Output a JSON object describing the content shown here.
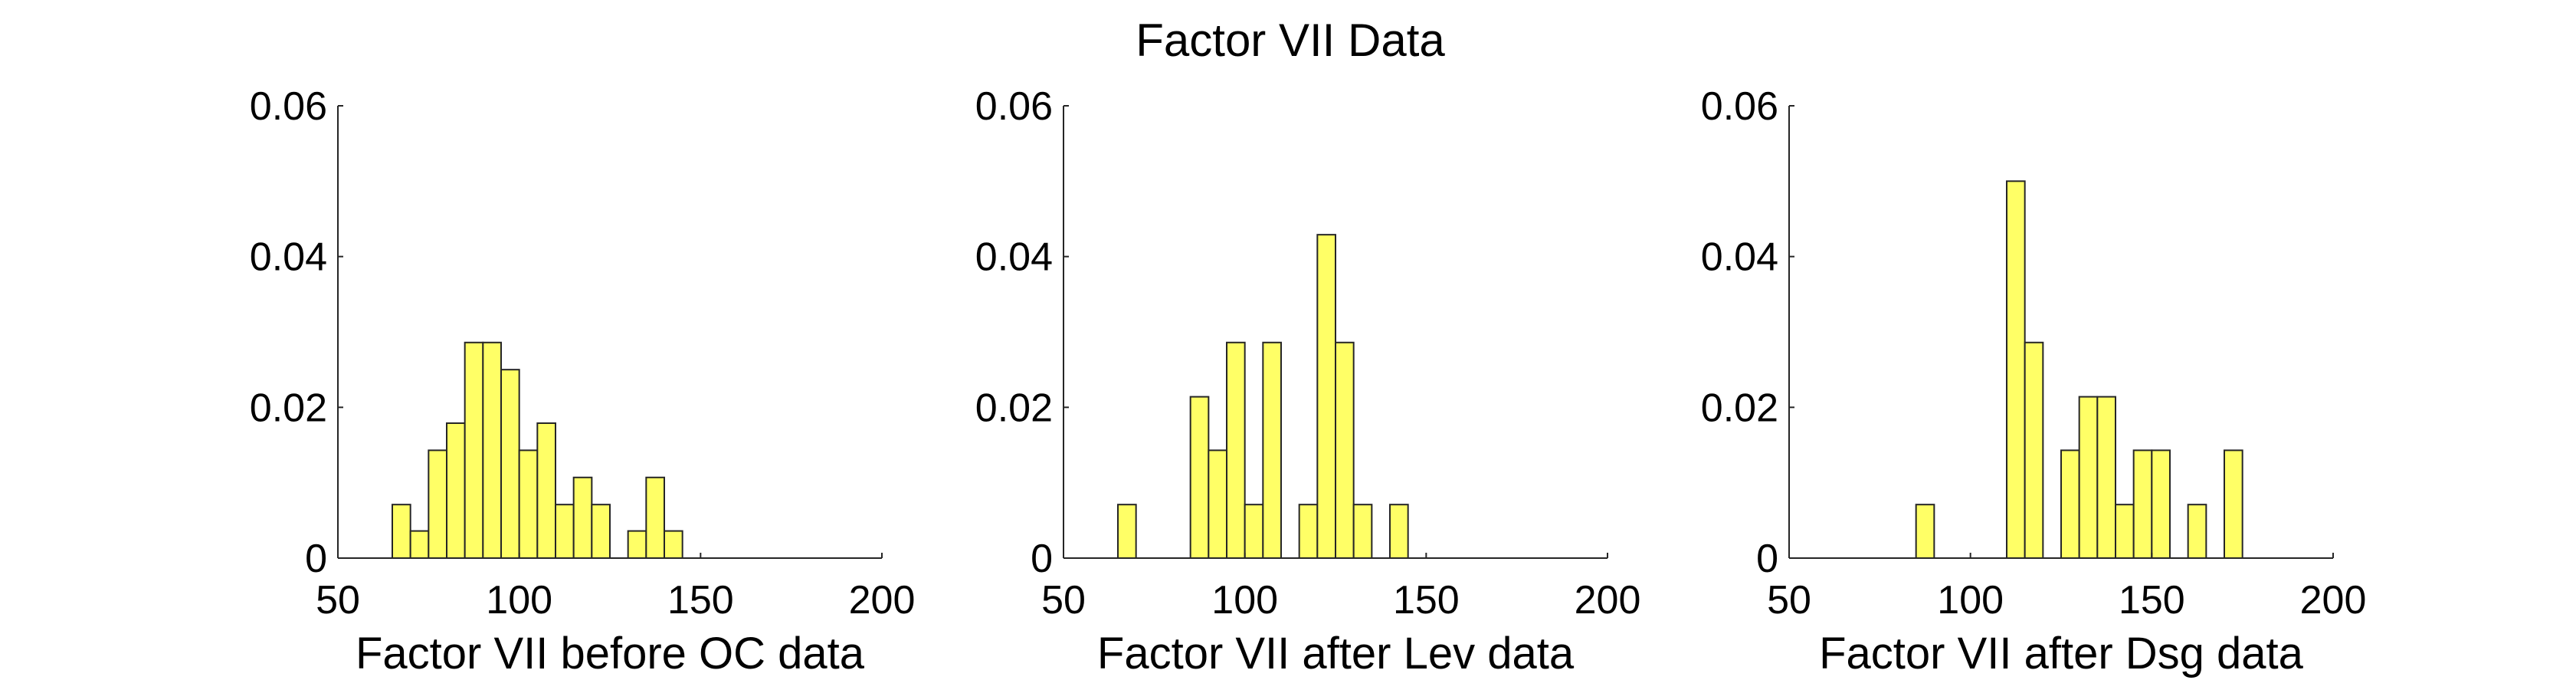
{
  "figure": {
    "title": "Factor VII Data"
  },
  "chart_data": [
    {
      "type": "bar",
      "xlabel": "Factor VII before OC data",
      "ylabel": "",
      "xlim": [
        50,
        200
      ],
      "ylim": [
        0,
        0.06
      ],
      "xticks": [
        "50",
        "100",
        "150",
        "200"
      ],
      "yticks": [
        "0",
        "0.02",
        "0.04",
        "0.06"
      ],
      "bin_width": 5,
      "bars_color": "#ffff66",
      "bins": [
        {
          "x0": 65,
          "x1": 70,
          "value": 0.0071
        },
        {
          "x0": 70,
          "x1": 75,
          "value": 0.0036
        },
        {
          "x0": 75,
          "x1": 80,
          "value": 0.0143
        },
        {
          "x0": 80,
          "x1": 85,
          "value": 0.0179
        },
        {
          "x0": 85,
          "x1": 90,
          "value": 0.0286
        },
        {
          "x0": 90,
          "x1": 95,
          "value": 0.0286
        },
        {
          "x0": 95,
          "x1": 100,
          "value": 0.025
        },
        {
          "x0": 100,
          "x1": 105,
          "value": 0.0143
        },
        {
          "x0": 105,
          "x1": 110,
          "value": 0.0179
        },
        {
          "x0": 110,
          "x1": 115,
          "value": 0.0071
        },
        {
          "x0": 115,
          "x1": 120,
          "value": 0.0107
        },
        {
          "x0": 120,
          "x1": 125,
          "value": 0.0071
        },
        {
          "x0": 130,
          "x1": 135,
          "value": 0.0036
        },
        {
          "x0": 135,
          "x1": 140,
          "value": 0.0107
        },
        {
          "x0": 140,
          "x1": 145,
          "value": 0.0036
        }
      ]
    },
    {
      "type": "bar",
      "xlabel": "Factor VII after Lev data",
      "ylabel": "",
      "xlim": [
        50,
        200
      ],
      "ylim": [
        0,
        0.06
      ],
      "xticks": [
        "50",
        "100",
        "150",
        "200"
      ],
      "yticks": [
        "0",
        "0.02",
        "0.04",
        "0.06"
      ],
      "bin_width": 5,
      "bars_color": "#ffff66",
      "bins": [
        {
          "x0": 65,
          "x1": 70,
          "value": 0.0071
        },
        {
          "x0": 85,
          "x1": 90,
          "value": 0.0214
        },
        {
          "x0": 90,
          "x1": 95,
          "value": 0.0143
        },
        {
          "x0": 95,
          "x1": 100,
          "value": 0.0286
        },
        {
          "x0": 100,
          "x1": 105,
          "value": 0.0071
        },
        {
          "x0": 105,
          "x1": 110,
          "value": 0.0286
        },
        {
          "x0": 115,
          "x1": 120,
          "value": 0.0071
        },
        {
          "x0": 120,
          "x1": 125,
          "value": 0.0429
        },
        {
          "x0": 125,
          "x1": 130,
          "value": 0.0286
        },
        {
          "x0": 130,
          "x1": 135,
          "value": 0.0071
        },
        {
          "x0": 140,
          "x1": 145,
          "value": 0.0071
        }
      ]
    },
    {
      "type": "bar",
      "xlabel": "Factor VII after Dsg data",
      "ylabel": "",
      "xlim": [
        50,
        200
      ],
      "ylim": [
        0,
        0.06
      ],
      "xticks": [
        "50",
        "100",
        "150",
        "200"
      ],
      "yticks": [
        "0",
        "0.02",
        "0.04",
        "0.06"
      ],
      "bin_width": 5,
      "bars_color": "#ffff66",
      "bins": [
        {
          "x0": 85,
          "x1": 90,
          "value": 0.0071
        },
        {
          "x0": 110,
          "x1": 115,
          "value": 0.05
        },
        {
          "x0": 115,
          "x1": 120,
          "value": 0.0286
        },
        {
          "x0": 125,
          "x1": 130,
          "value": 0.0143
        },
        {
          "x0": 130,
          "x1": 135,
          "value": 0.0214
        },
        {
          "x0": 135,
          "x1": 140,
          "value": 0.0214
        },
        {
          "x0": 140,
          "x1": 145,
          "value": 0.0071
        },
        {
          "x0": 145,
          "x1": 150,
          "value": 0.0143
        },
        {
          "x0": 150,
          "x1": 155,
          "value": 0.0143
        },
        {
          "x0": 160,
          "x1": 165,
          "value": 0.0071
        },
        {
          "x0": 170,
          "x1": 175,
          "value": 0.0143
        }
      ]
    }
  ]
}
